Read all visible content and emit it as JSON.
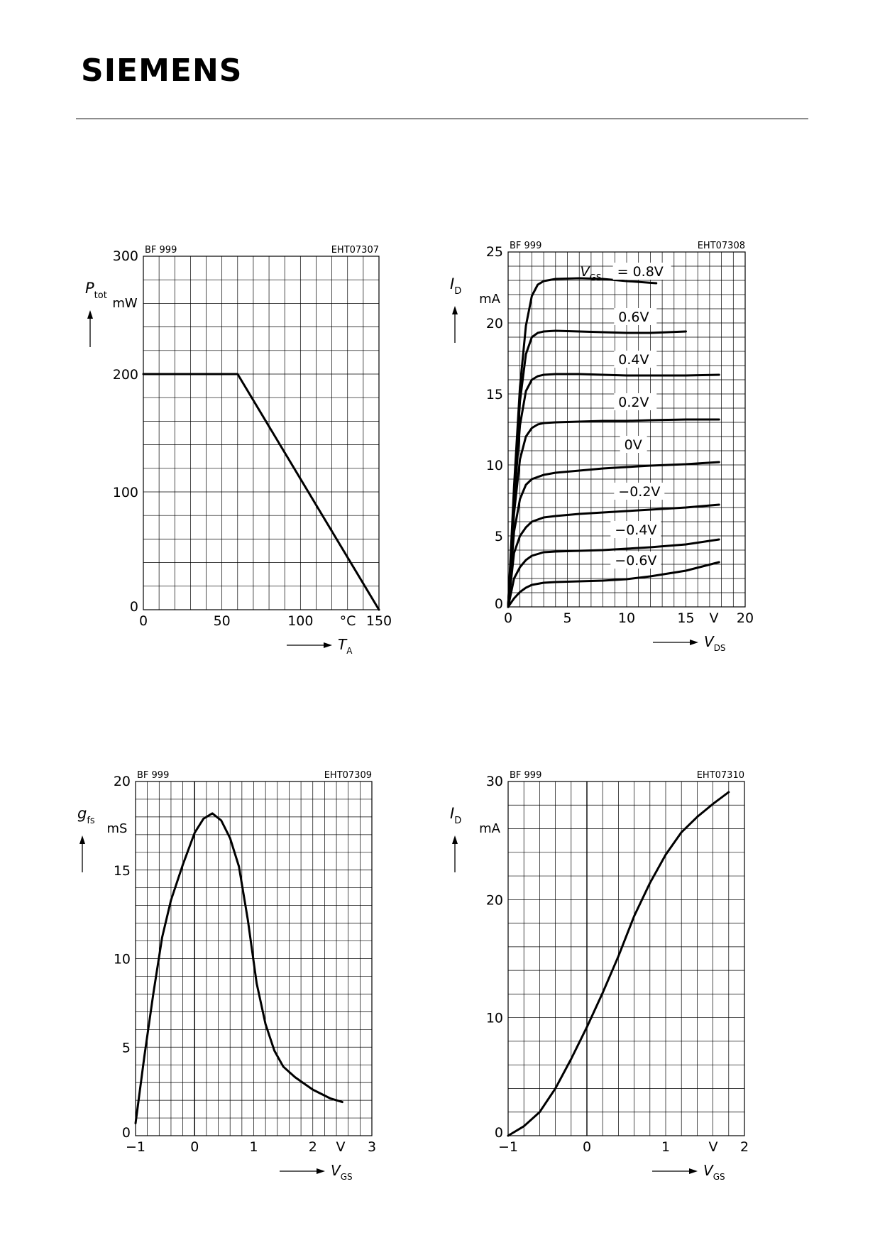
{
  "header": {
    "brand": "SIEMENS"
  },
  "chart_data": [
    {
      "type": "line",
      "product": "BF 999",
      "code": "EHT07307",
      "ylabel": "P",
      "ylabel_sub": "tot",
      "yunit": "mW",
      "xlabel": "T",
      "xlabel_sub": "A",
      "xunit": "°C",
      "xlim": [
        0,
        150
      ],
      "ylim": [
        0,
        300
      ],
      "xgrid": 10,
      "ygrid": 20,
      "xticks": [
        {
          "v": 0,
          "t": "0"
        },
        {
          "v": 50,
          "t": "50"
        },
        {
          "v": 100,
          "t": "100"
        },
        {
          "v": 150,
          "t": "150"
        }
      ],
      "yticks": [
        {
          "v": 0,
          "t": "0"
        },
        {
          "v": 100,
          "t": "100"
        },
        {
          "v": 200,
          "t": "200"
        },
        {
          "v": 300,
          "t": "300"
        }
      ],
      "series": [
        {
          "x": [
            0,
            60,
            150
          ],
          "y": [
            200,
            200,
            0
          ]
        }
      ]
    },
    {
      "type": "line",
      "product": "BF 999",
      "code": "EHT07308",
      "ylabel": "I",
      "ylabel_sub": "D",
      "yunit": "mA",
      "xlabel": "V",
      "xlabel_sub": "DS",
      "xunit": "V",
      "xlim": [
        0,
        20
      ],
      "ylim": [
        0,
        25
      ],
      "xgrid": 1,
      "ygrid": 1,
      "xticks": [
        {
          "v": 0,
          "t": "0"
        },
        {
          "v": 5,
          "t": "5"
        },
        {
          "v": 10,
          "t": "10"
        },
        {
          "v": 15,
          "t": "15"
        },
        {
          "v": 20,
          "t": "20"
        }
      ],
      "yticks": [
        {
          "v": 0,
          "t": "0"
        },
        {
          "v": 5,
          "t": "5"
        },
        {
          "v": 10,
          "t": "10"
        },
        {
          "v": 15,
          "t": "15"
        },
        {
          "v": 20,
          "t": "20"
        },
        {
          "v": 25,
          "t": "25"
        }
      ],
      "curve_param": "V",
      "curve_param_sub": "GS",
      "series": [
        {
          "name": "0.8V",
          "label": "= 0.8V",
          "label_at": [
            9.2,
            23.3
          ],
          "x": [
            0,
            0.5,
            1,
            1.5,
            2,
            2.5,
            3,
            4,
            6,
            8,
            10,
            12.5
          ],
          "y": [
            0,
            8.5,
            15.5,
            19.8,
            21.9,
            22.7,
            22.95,
            23.1,
            23.15,
            23.1,
            22.95,
            22.8
          ]
        },
        {
          "name": "0.6V",
          "label": "0.6V",
          "label_at": [
            9.3,
            20.1
          ],
          "x": [
            0,
            0.5,
            1,
            1.5,
            2,
            2.5,
            3,
            4,
            6,
            8,
            10,
            12,
            15
          ],
          "y": [
            0,
            8,
            14.5,
            17.8,
            19,
            19.3,
            19.4,
            19.45,
            19.4,
            19.35,
            19.3,
            19.3,
            19.4
          ]
        },
        {
          "name": "0.4V",
          "label": "0.4V",
          "label_at": [
            9.3,
            17.1
          ],
          "x": [
            0,
            0.5,
            1,
            1.5,
            2,
            2.5,
            3,
            4,
            6,
            8,
            10,
            12,
            15,
            17.8
          ],
          "y": [
            0,
            7.4,
            12.8,
            15.2,
            16,
            16.25,
            16.35,
            16.4,
            16.4,
            16.35,
            16.3,
            16.3,
            16.3,
            16.35
          ]
        },
        {
          "name": "0.2V",
          "label": "0.2V",
          "label_at": [
            9.3,
            14.1
          ],
          "x": [
            0,
            0.5,
            1,
            1.5,
            2,
            2.5,
            3,
            4,
            6,
            8,
            10,
            12,
            15,
            17.8
          ],
          "y": [
            0,
            6.6,
            10.4,
            12,
            12.6,
            12.85,
            12.95,
            13,
            13.05,
            13.1,
            13.1,
            13.15,
            13.2,
            13.2
          ]
        },
        {
          "name": "0V",
          "label": "0V",
          "label_at": [
            9.8,
            11.1
          ],
          "x": [
            0,
            0.5,
            1,
            1.5,
            2,
            3,
            4,
            6,
            8,
            10,
            12,
            15,
            17.8
          ],
          "y": [
            0,
            5.3,
            7.6,
            8.6,
            9,
            9.3,
            9.45,
            9.6,
            9.75,
            9.85,
            9.95,
            10.05,
            10.2
          ]
        },
        {
          "name": "−0.2V",
          "label": "−0.2V",
          "label_at": [
            9.3,
            7.8
          ],
          "x": [
            0,
            0.5,
            1,
            1.5,
            2,
            3,
            4,
            6,
            8,
            10,
            12,
            15,
            17.8
          ],
          "y": [
            0,
            3.8,
            5,
            5.6,
            6,
            6.3,
            6.4,
            6.55,
            6.65,
            6.75,
            6.85,
            7,
            7.2
          ]
        },
        {
          "name": "−0.4V",
          "label": "−0.4V",
          "label_at": [
            9,
            5.1
          ],
          "x": [
            0,
            0.5,
            1,
            1.5,
            2,
            3,
            4,
            6,
            8,
            10,
            12,
            15,
            17.8
          ],
          "y": [
            0,
            2,
            2.8,
            3.3,
            3.6,
            3.85,
            3.9,
            3.95,
            4,
            4.1,
            4.2,
            4.4,
            4.75
          ]
        },
        {
          "name": "−0.6V",
          "label": "−0.6V",
          "label_at": [
            9,
            2.95
          ],
          "x": [
            0,
            0.5,
            1,
            1.5,
            2,
            3,
            4,
            6,
            8,
            10,
            12,
            15,
            17.8
          ],
          "y": [
            0,
            0.6,
            1.05,
            1.35,
            1.55,
            1.7,
            1.75,
            1.8,
            1.85,
            1.95,
            2.15,
            2.55,
            3.15
          ]
        }
      ]
    },
    {
      "type": "line",
      "product": "BF 999",
      "code": "EHT07309",
      "ylabel": "g",
      "ylabel_sub": "fs",
      "yunit": "mS",
      "xlabel": "V",
      "xlabel_sub": "GS",
      "xunit": "V",
      "xlim": [
        -1,
        3
      ],
      "ylim": [
        0,
        20
      ],
      "xgrid": 0.2,
      "ygrid": 1,
      "zero_line": 0,
      "xticks": [
        {
          "v": -1,
          "t": "−1"
        },
        {
          "v": 0,
          "t": "0"
        },
        {
          "v": 1,
          "t": "1"
        },
        {
          "v": 2,
          "t": "2"
        },
        {
          "v": 3,
          "t": "3"
        }
      ],
      "yticks": [
        {
          "v": 0,
          "t": "0"
        },
        {
          "v": 5,
          "t": "5"
        },
        {
          "v": 10,
          "t": "10"
        },
        {
          "v": 15,
          "t": "15"
        },
        {
          "v": 20,
          "t": "20"
        }
      ],
      "series": [
        {
          "x": [
            -1,
            -0.85,
            -0.7,
            -0.55,
            -0.4,
            -0.2,
            0,
            0.15,
            0.3,
            0.45,
            0.6,
            0.75,
            0.9,
            1.05,
            1.2,
            1.35,
            1.5,
            1.7,
            2,
            2.3,
            2.5
          ],
          "y": [
            0.7,
            4.5,
            8,
            11.2,
            13.3,
            15.3,
            17.1,
            17.9,
            18.2,
            17.8,
            16.8,
            15.2,
            12.2,
            8.6,
            6.3,
            4.8,
            3.9,
            3.3,
            2.6,
            2.1,
            1.9
          ]
        }
      ]
    },
    {
      "type": "line",
      "product": "BF 999",
      "code": "EHT07310",
      "ylabel": "I",
      "ylabel_sub": "D",
      "yunit": "mA",
      "xlabel": "V",
      "xlabel_sub": "GS",
      "xunit": "V",
      "xlim": [
        -1,
        2
      ],
      "ylim": [
        0,
        30
      ],
      "xgrid": 0.2,
      "ygrid": 2,
      "zero_line": 0,
      "xticks": [
        {
          "v": -1,
          "t": "−1"
        },
        {
          "v": 0,
          "t": "0"
        },
        {
          "v": 1,
          "t": "1"
        },
        {
          "v": 2,
          "t": "2"
        }
      ],
      "yticks": [
        {
          "v": 0,
          "t": "0"
        },
        {
          "v": 10,
          "t": "10"
        },
        {
          "v": 20,
          "t": "20"
        },
        {
          "v": 30,
          "t": "30"
        }
      ],
      "series": [
        {
          "x": [
            -1,
            -0.8,
            -0.6,
            -0.4,
            -0.2,
            0,
            0.2,
            0.4,
            0.6,
            0.8,
            1,
            1.2,
            1.4,
            1.6,
            1.8
          ],
          "y": [
            0,
            0.8,
            2,
            4,
            6.5,
            9.2,
            12.1,
            15.2,
            18.6,
            21.4,
            23.8,
            25.7,
            27,
            28.1,
            29.1
          ]
        }
      ]
    }
  ]
}
